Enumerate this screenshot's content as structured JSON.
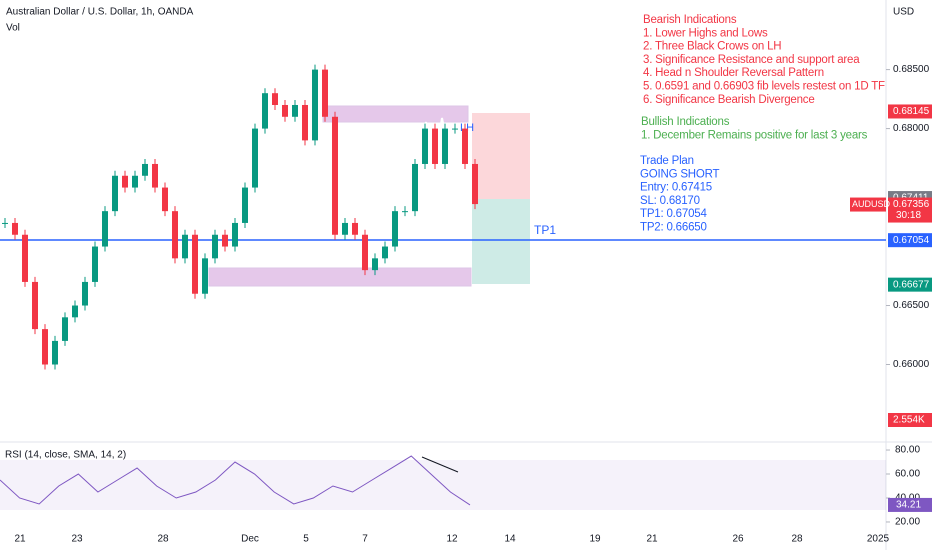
{
  "header": {
    "symbol": "Australian Dollar / U.S. Dollar, 1h, OANDA",
    "volume": "Vol",
    "currency": "USD"
  },
  "annotations": {
    "bearish": {
      "title": "Bearish Indications",
      "items": [
        "1. Lower Highs and Lows",
        "2. Three Black Crows on LH",
        "3. Significance Resistance and support area",
        "4. Head n Shoulder Reversal Pattern",
        "5. 0.6591 and 0.66903 fib levels restest on 1D TF",
        "6. Significance Bearish Divergence"
      ]
    },
    "bullish": {
      "title": "Bullish Indications",
      "items": [
        "1. December Remains positive for last 3 years"
      ]
    },
    "plan": {
      "title": "Trade Plan",
      "lines": [
        "GOING SHORT",
        "Entry: 0.67415",
        "SL: 0.68170",
        "TP1: 0.67054",
        "TP2: 0.66650"
      ]
    },
    "lh": "LH",
    "tp1": "TP1"
  },
  "chart_data": {
    "type": "candlestick",
    "values": [
      0.672,
      0.671,
      0.667,
      0.663,
      0.66,
      0.662,
      0.664,
      0.665,
      0.667,
      0.67,
      0.673,
      0.676,
      0.675,
      0.676,
      0.677,
      0.675,
      0.673,
      0.669,
      0.671,
      0.666,
      0.669,
      0.671,
      0.67,
      0.672,
      0.675,
      0.68,
      0.683,
      0.682,
      0.681,
      0.682,
      0.679,
      0.685,
      0.681,
      0.671,
      0.672,
      0.671,
      0.668,
      0.669,
      0.67,
      0.673,
      0.673,
      0.677,
      0.68,
      0.677,
      0.68,
      0.68,
      0.677,
      0.6736
    ],
    "ylim": [
      0.6536,
      0.6909
    ],
    "yticks": [
      {
        "value": 0.685,
        "label": "0.68500"
      },
      {
        "value": 0.68,
        "label": "0.68000"
      },
      {
        "value": 0.665,
        "label": "0.66500"
      },
      {
        "value": 0.66,
        "label": "0.66000"
      }
    ],
    "price_labels": [
      {
        "value": 0.68145,
        "label": "0.68145",
        "color": "#f23645"
      },
      {
        "value": 0.67411,
        "label": "0.67411",
        "color": "#787b86"
      },
      {
        "value": 0.67054,
        "label": "0.67054",
        "color": "#2962ff"
      },
      {
        "value": 0.66677,
        "label": "0.66677",
        "color": "#089981"
      }
    ],
    "last": {
      "value": 0.67356,
      "label": "0.67356",
      "symbol": "AUDUSD",
      "countdown": "30:18"
    },
    "volume_label": "2.554K",
    "x_labels": [
      "21",
      "23",
      "28",
      "Dec",
      "5",
      "7",
      "12",
      "14",
      "19",
      "21",
      "26",
      "28",
      "2025"
    ],
    "rsi": {
      "title": "RSI (14, close, SMA, 14, 2)",
      "values": [
        55,
        40,
        35,
        50,
        60,
        45,
        55,
        65,
        50,
        40,
        45,
        55,
        70,
        60,
        45,
        35,
        40,
        50,
        45,
        55,
        65,
        75,
        60,
        45,
        34.21
      ],
      "ylim": [
        13.3,
        84.2
      ],
      "yticks": [
        {
          "value": 80,
          "label": "80.00"
        },
        {
          "value": 60,
          "label": "60.00"
        },
        {
          "value": 40,
          "label": "40.00"
        },
        {
          "value": 20,
          "label": "20.00"
        }
      ],
      "last": {
        "value": 34.21,
        "label": "34.21"
      }
    }
  }
}
